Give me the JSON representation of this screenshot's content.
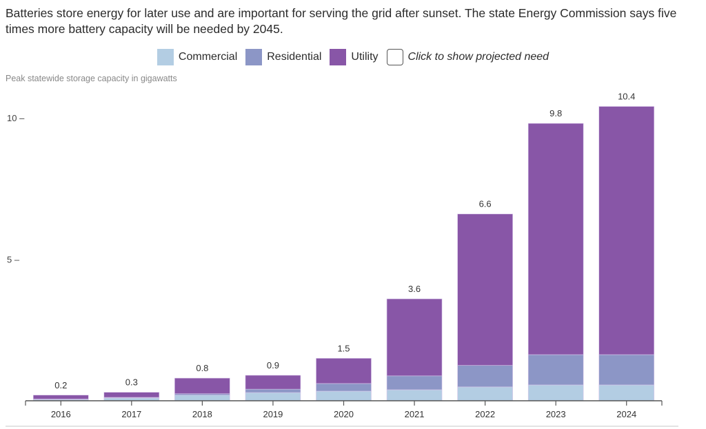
{
  "description": "Batteries store energy for later use and are important for serving the grid after sunset. The state Energy Commission says five times more battery capacity will be needed by 2045.",
  "legend": {
    "items": [
      {
        "label": "Commercial",
        "color": "#b3cde3"
      },
      {
        "label": "Residential",
        "color": "#8c96c6"
      },
      {
        "label": "Utility",
        "color": "#8856a7"
      }
    ],
    "toggle_label": "Click to show projected need",
    "toggle_checked": false
  },
  "chart_data": {
    "type": "bar",
    "stacked": true,
    "title": "",
    "xlabel": "",
    "ylabel": "Peak statewide storage capacity in gigawatts",
    "ylim": [
      0,
      10.4
    ],
    "yticks": [
      5,
      10
    ],
    "ytick_labels": [
      "5",
      "10"
    ],
    "categories": [
      "2016",
      "2017",
      "2018",
      "2019",
      "2020",
      "2021",
      "2022",
      "2023",
      "2024"
    ],
    "series": [
      {
        "name": "Commercial",
        "color": "#b3cde3",
        "values": [
          0.05,
          0.1,
          0.2,
          0.29,
          0.34,
          0.39,
          0.49,
          0.56,
          0.56
        ]
      },
      {
        "name": "Residential",
        "color": "#8c96c6",
        "values": [
          0.01,
          0.02,
          0.05,
          0.12,
          0.27,
          0.49,
          0.76,
          1.07,
          1.07
        ]
      },
      {
        "name": "Utility",
        "color": "#8856a7",
        "values": [
          0.14,
          0.18,
          0.55,
          0.49,
          0.89,
          2.72,
          5.35,
          8.17,
          8.77
        ]
      }
    ],
    "totals": [
      0.2,
      0.3,
      0.8,
      0.9,
      1.5,
      3.6,
      6.6,
      9.8,
      10.4
    ],
    "total_labels": [
      "0.2",
      "0.3",
      "0.8",
      "0.9",
      "1.5",
      "3.6",
      "6.6",
      "9.8",
      "10.4"
    ],
    "grid": false,
    "legend_position": "top-center"
  }
}
